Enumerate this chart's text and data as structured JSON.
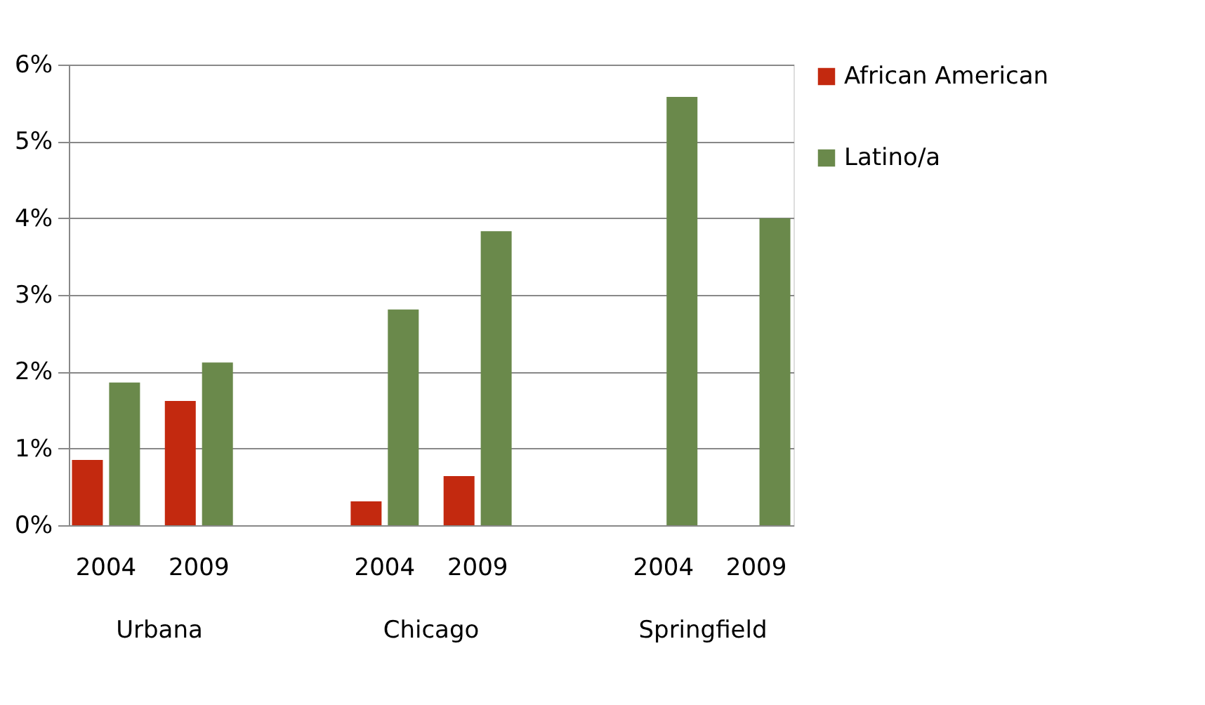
{
  "chart_data": {
    "type": "bar",
    "categories": [
      "2004",
      "2009",
      null,
      "2004",
      "2009",
      null,
      "2004",
      "2009"
    ],
    "series": [
      {
        "name": "African American",
        "color": "#c3290f",
        "values": [
          0.85,
          1.62,
          null,
          0.31,
          0.64,
          null,
          0,
          0
        ]
      },
      {
        "name": "Latino/a",
        "color": "#6a894b",
        "values": [
          1.86,
          2.12,
          null,
          2.81,
          3.83,
          null,
          5.58,
          4.0
        ]
      }
    ],
    "ylim": [
      0,
      6
    ],
    "yticks": [
      {
        "value": 0,
        "label": "0%"
      },
      {
        "value": 1,
        "label": "1%"
      },
      {
        "value": 2,
        "label": "2%"
      },
      {
        "value": 3,
        "label": "3%"
      },
      {
        "value": 4,
        "label": "4%"
      },
      {
        "value": 5,
        "label": "5%"
      },
      {
        "value": 6,
        "label": "6%"
      }
    ],
    "grid": "y",
    "legend": "right",
    "annotations": [
      "Urbana",
      "Chicago",
      "Springfield"
    ]
  }
}
